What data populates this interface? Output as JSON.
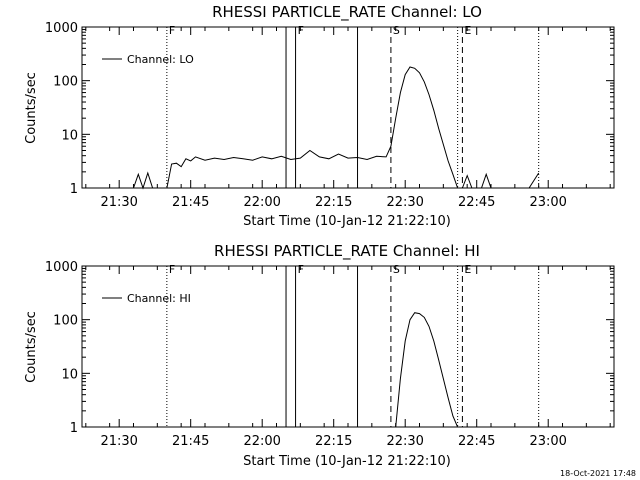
{
  "footer_text": "18-Oct-2021 17:48",
  "chart_data": [
    {
      "type": "line",
      "title": "RHESSI PARTICLE_RATE Channel: LO",
      "xlabel": "Start Time (10-Jan-12 21:22:10)",
      "ylabel": "Counts/sec",
      "yscale": "log",
      "ylim": [
        1,
        1000
      ],
      "xlim_minutes": [
        21.37,
        23.23
      ],
      "x_ticks": [
        "21:30",
        "21:45",
        "22:00",
        "22:15",
        "22:30",
        "22:45",
        "23:00"
      ],
      "y_ticks": [
        "1",
        "10",
        "100",
        "1000"
      ],
      "legend": {
        "label": "Channel: LO",
        "placement": "top-left"
      },
      "markers": [
        {
          "label": "F",
          "time": "21:40",
          "style": "dotted"
        },
        {
          "label": "",
          "time": "22:05",
          "style": "solid"
        },
        {
          "label": "F",
          "time": "22:07",
          "style": "solid"
        },
        {
          "label": "",
          "time": "22:20",
          "style": "solid"
        },
        {
          "label": "S",
          "time": "22:27",
          "style": "dashed"
        },
        {
          "label": "",
          "time": "22:41",
          "style": "dotted"
        },
        {
          "label": "E",
          "time": "22:42",
          "style": "dashed"
        },
        {
          "label": "",
          "time": "22:58",
          "style": "dotted"
        }
      ],
      "series": [
        {
          "x": [
            "21:33",
            "21:34",
            "21:35",
            "21:36",
            "21:37",
            "21:38",
            "21:39",
            "21:40",
            "21:41",
            "21:42",
            "21:43",
            "21:44",
            "21:45",
            "21:46",
            "21:48",
            "21:50",
            "21:52",
            "21:54",
            "21:56",
            "21:58",
            "22:00",
            "22:02",
            "22:04",
            "22:06",
            "22:08",
            "22:10",
            "22:12",
            "22:14",
            "22:16",
            "22:18",
            "22:20",
            "22:22",
            "22:24",
            "22:26",
            "22:27",
            "22:28",
            "22:29",
            "22:30",
            "22:31",
            "22:32",
            "22:33",
            "22:34",
            "22:35",
            "22:36",
            "22:37",
            "22:38",
            "22:39",
            "22:40",
            "22:41",
            "22:42",
            "22:43",
            "22:44",
            "22:45",
            "22:46",
            "22:47",
            "22:48",
            "22:50",
            "22:52",
            "22:54",
            "22:56",
            "22:58"
          ],
          "y": [
            1.0,
            1.8,
            1.0,
            1.9,
            1.0,
            1.0,
            1.0,
            1.0,
            2.8,
            2.9,
            2.5,
            3.5,
            3.2,
            3.8,
            3.3,
            3.6,
            3.4,
            3.7,
            3.5,
            3.3,
            3.8,
            3.5,
            3.9,
            3.4,
            3.6,
            5.0,
            3.8,
            3.5,
            4.3,
            3.6,
            3.7,
            3.4,
            3.9,
            3.8,
            6.0,
            20,
            60,
            130,
            180,
            170,
            140,
            95,
            55,
            28,
            13,
            6.5,
            3.2,
            1.8,
            1.0,
            1.0,
            1.7,
            1.0,
            1.0,
            1.0,
            1.8,
            1.0,
            1.0,
            1.0,
            1.0,
            1.0,
            1.9
          ]
        }
      ]
    },
    {
      "type": "line",
      "title": "RHESSI PARTICLE_RATE Channel: HI",
      "xlabel": "Start Time (10-Jan-12 21:22:10)",
      "ylabel": "Counts/sec",
      "yscale": "log",
      "ylim": [
        1,
        1000
      ],
      "xlim_minutes": [
        21.37,
        23.23
      ],
      "x_ticks": [
        "21:30",
        "21:45",
        "22:00",
        "22:15",
        "22:30",
        "22:45",
        "23:00"
      ],
      "y_ticks": [
        "1",
        "10",
        "100",
        "1000"
      ],
      "legend": {
        "label": "Channel: HI",
        "placement": "top-left"
      },
      "markers": [
        {
          "label": "F",
          "time": "21:40",
          "style": "dotted"
        },
        {
          "label": "",
          "time": "22:05",
          "style": "solid"
        },
        {
          "label": "F",
          "time": "22:07",
          "style": "solid"
        },
        {
          "label": "",
          "time": "22:20",
          "style": "solid"
        },
        {
          "label": "S",
          "time": "22:27",
          "style": "dashed"
        },
        {
          "label": "",
          "time": "22:41",
          "style": "dotted"
        },
        {
          "label": "E",
          "time": "22:42",
          "style": "dashed"
        },
        {
          "label": "",
          "time": "22:58",
          "style": "dotted"
        }
      ],
      "series": [
        {
          "x": [
            "22:28",
            "22:29",
            "22:30",
            "22:31",
            "22:32",
            "22:33",
            "22:34",
            "22:35",
            "22:36",
            "22:37",
            "22:38",
            "22:39",
            "22:40",
            "22:41"
          ],
          "y": [
            1.0,
            8,
            40,
            100,
            135,
            130,
            110,
            75,
            40,
            18,
            8,
            3.5,
            1.6,
            1.0
          ]
        }
      ]
    }
  ]
}
